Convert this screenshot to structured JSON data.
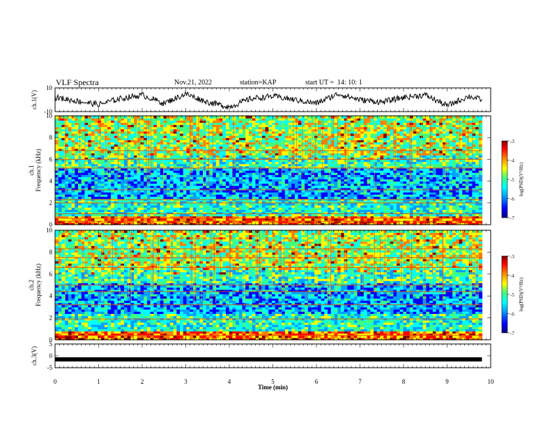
{
  "header": {
    "title": "VLF Spectra",
    "date": "Nov.21, 2022",
    "station_label": "station=",
    "station": "KAP",
    "start_label": "start UT =",
    "start_time": "14: 10: 1"
  },
  "colors": {
    "line": "#000000",
    "background": "#ffffff",
    "colormap": [
      "#000080",
      "#0000ff",
      "#00a0ff",
      "#00ffff",
      "#40ff80",
      "#ffff00",
      "#ff8000",
      "#ff0000",
      "#800000"
    ]
  },
  "chart_data": [
    {
      "type": "line",
      "title": "",
      "xlabel": "",
      "ylabel": "ch.1(V)",
      "xlim": [
        0,
        10
      ],
      "ylim": [
        -10,
        10
      ],
      "ytick_labels": [
        "10",
        "-10"
      ],
      "series": [
        {
          "x": [
            0,
            0.5,
            1,
            1.5,
            2,
            2.5,
            3,
            3.5,
            4,
            4.5,
            5,
            5.5,
            6,
            6.5,
            7,
            7.5,
            8,
            8.5,
            9,
            9.5,
            9.8
          ],
          "values": [
            2,
            -1,
            -4,
            1,
            4,
            -3,
            5,
            -2,
            -6,
            1,
            3,
            0,
            -3,
            5,
            0,
            -2,
            2,
            4,
            -5,
            3,
            0
          ]
        }
      ],
      "data_end_min": 9.8
    },
    {
      "type": "heatmap",
      "ylabel": "ch.1 Frequency (kHz)",
      "xlim": [
        0,
        10
      ],
      "ylim": [
        0,
        10
      ],
      "ytick_labels": [
        "0",
        "2",
        "4",
        "6",
        "8",
        "10"
      ],
      "colorbar": {
        "label": "log(PSD)(V²/Hz)",
        "range": [
          -7,
          -3
        ],
        "tick_labels": [
          "-7",
          "-6",
          "-5",
          "-4",
          "-3"
        ]
      },
      "data_end_min": 9.8,
      "notes_bands_khz": [
        0.3,
        0.6,
        1.0,
        2.0,
        2.3,
        3.2,
        5.2,
        6.0,
        6.8
      ]
    },
    {
      "type": "heatmap",
      "ylabel": "ch.2 Frequency (kHz)",
      "xlim": [
        0,
        10
      ],
      "ylim": [
        0,
        10
      ],
      "ytick_labels": [
        "0",
        "2",
        "4",
        "6",
        "8",
        "10"
      ],
      "colorbar": {
        "label": "log(PSD)(V²/Hz)",
        "range": [
          -7,
          -3
        ],
        "tick_labels": [
          "-7",
          "-6",
          "-5",
          "-4",
          "-3"
        ]
      },
      "data_end_min": 9.8,
      "notes_bands_khz": [
        0.4,
        1.9,
        3.2,
        4.4,
        5.0,
        6.6,
        7.5,
        8.3
      ]
    },
    {
      "type": "line",
      "ylabel": "ch.3(V)",
      "xlabel": "Time (min)",
      "xlim": [
        0,
        10
      ],
      "ylim": [
        -5,
        5
      ],
      "ytick_labels": [
        "5",
        "0",
        "-5"
      ],
      "xtick_labels": [
        "0",
        "1",
        "2",
        "3",
        "4",
        "5",
        "6",
        "7",
        "8",
        "9",
        "10"
      ],
      "series": [
        {
          "x": [
            0,
            9.8
          ],
          "values": [
            -1.5,
            -1.5
          ]
        }
      ],
      "data_end_min": 9.8
    }
  ]
}
